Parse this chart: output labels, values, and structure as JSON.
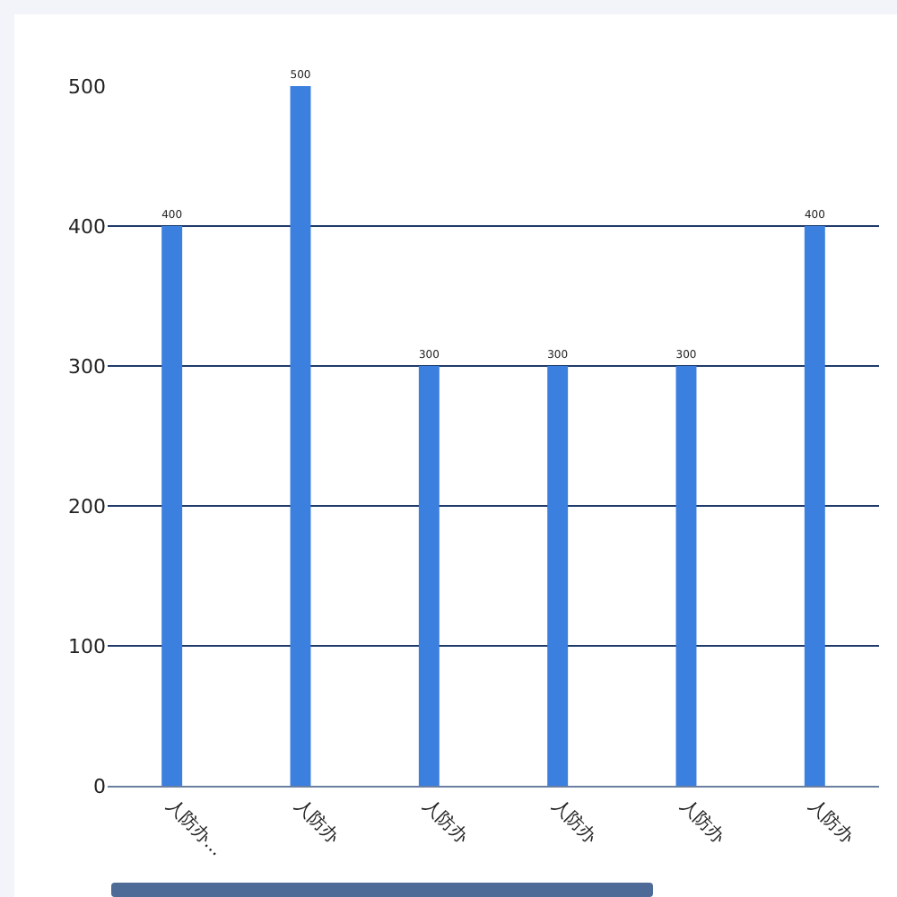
{
  "chart_data": {
    "type": "bar",
    "categories": [
      "人防办...",
      "人防办",
      "人防办",
      "人防办",
      "人防办",
      "人防办"
    ],
    "values": [
      400,
      500,
      300,
      300,
      300,
      400
    ],
    "color": "#3b7fdf",
    "ylim": [
      0,
      500
    ],
    "yticks": [
      0,
      100,
      200,
      300,
      400,
      500
    ],
    "grid": "y",
    "data_labels": true
  }
}
